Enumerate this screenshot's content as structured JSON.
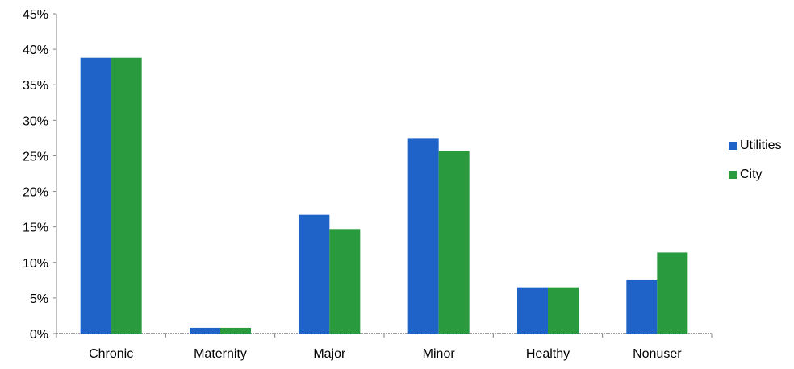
{
  "chart_data": {
    "type": "bar",
    "categories": [
      "Chronic",
      "Maternity",
      "Major",
      "Minor",
      "Healthy",
      "Nonuser"
    ],
    "series": [
      {
        "name": "Utilities",
        "values": [
          38.8,
          0.8,
          16.7,
          27.5,
          6.5,
          7.6
        ],
        "color": "#1f63c8"
      },
      {
        "name": "City",
        "values": [
          38.8,
          0.8,
          14.7,
          25.7,
          6.5,
          11.4
        ],
        "color": "#2a9a3e"
      }
    ],
    "ylim": [
      0,
      45
    ],
    "yticks": [
      "0%",
      "5%",
      "10%",
      "15%",
      "20%",
      "25%",
      "30%",
      "35%",
      "40%",
      "45%"
    ],
    "ytick_values": [
      0,
      5,
      10,
      15,
      20,
      25,
      30,
      35,
      40,
      45
    ],
    "legend_position": "right",
    "grid": false
  }
}
